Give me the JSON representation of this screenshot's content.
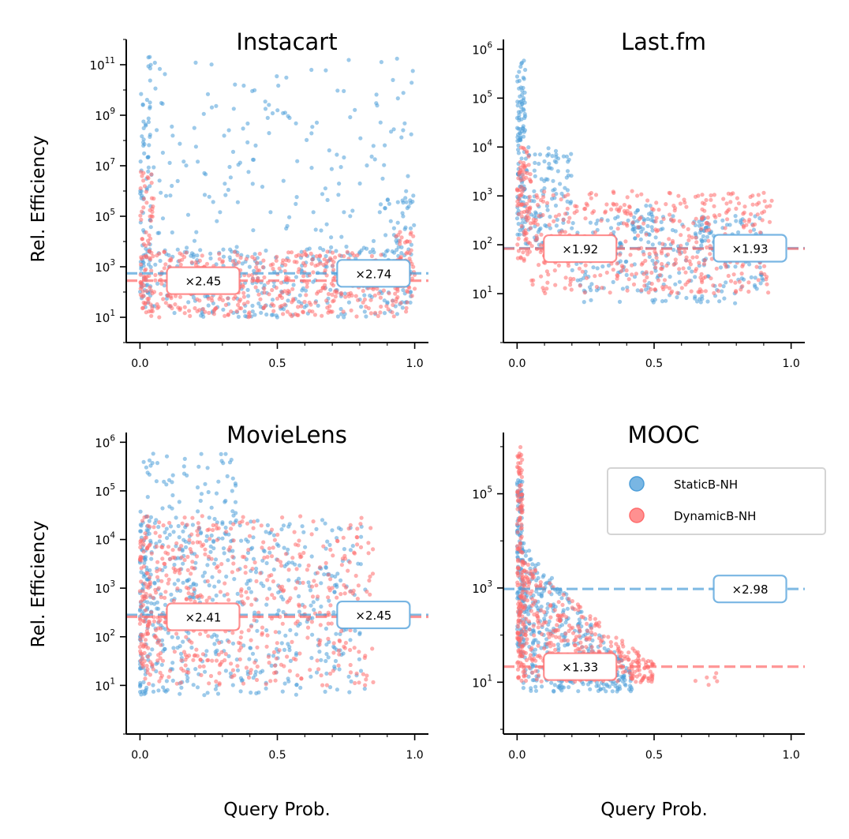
{
  "figure": {
    "xlabel": "Query Prob.",
    "ylabel": "Rel. Efficiency"
  },
  "legend": {
    "placement": "right-of-MOOC-panel",
    "items": [
      {
        "label": "StaticB-NH",
        "color": "#4c9ed9"
      },
      {
        "label": "DynamicB-NH",
        "color": "#ff6b6b"
      }
    ]
  },
  "colors": {
    "static": "#4c9ed9",
    "dynamic": "#ff6b6b"
  },
  "chart_data": [
    {
      "type": "scatter",
      "title": "Instacart",
      "xlim": [
        -0.05,
        1.05
      ],
      "ylim_log10": [
        0,
        12
      ],
      "xticks": [
        "0.0",
        "0.5",
        "1.0"
      ],
      "yticks": [
        {
          "base": "10",
          "exp": "1"
        },
        {
          "base": "10",
          "exp": "3"
        },
        {
          "base": "10",
          "exp": "5"
        },
        {
          "base": "10",
          "exp": "7"
        },
        {
          "base": "10",
          "exp": "9"
        },
        {
          "base": "10",
          "exp": "11"
        }
      ],
      "ytick_values": [
        1,
        3,
        5,
        7,
        9,
        11
      ],
      "baselines": [
        {
          "series": "StaticB-NH",
          "y": 2.74,
          "label": "×2.74",
          "label_x": 0.85
        },
        {
          "series": "DynamicB-NH",
          "y": 2.45,
          "label": "×2.45",
          "label_x": 0.23
        }
      ],
      "series": [
        {
          "name": "StaticB-NH",
          "clouds": [
            {
              "x": [
                0,
                0.04
              ],
              "logy": [
                1.5,
                11.5
              ],
              "n": 70,
              "pow": 1
            },
            {
              "x": [
                0,
                1
              ],
              "logy": [
                4,
                11.3
              ],
              "n": 170,
              "pow": 1
            },
            {
              "x": [
                0,
                1
              ],
              "logy": [
                1,
                3.8
              ],
              "n": 330,
              "pow": 1
            },
            {
              "x": [
                0.9,
                1
              ],
              "logy": [
                3,
                6
              ],
              "n": 35,
              "pow": 1
            }
          ]
        },
        {
          "name": "DynamicB-NH",
          "clouds": [
            {
              "x": [
                0,
                0.05
              ],
              "logy": [
                1.5,
                6.8
              ],
              "n": 60,
              "pow": 1
            },
            {
              "x": [
                0,
                1
              ],
              "logy": [
                1,
                3.6
              ],
              "n": 480,
              "pow": 1
            },
            {
              "x": [
                0.93,
                1
              ],
              "logy": [
                2,
                4.5
              ],
              "n": 40,
              "pow": 1
            }
          ]
        }
      ]
    },
    {
      "type": "scatter",
      "title": "Last.fm",
      "xlim": [
        -0.05,
        1.05
      ],
      "ylim_log10": [
        0,
        6.2
      ],
      "xticks": [
        "0.0",
        "0.5",
        "1.0"
      ],
      "yticks": [
        {
          "base": "10",
          "exp": "1"
        },
        {
          "base": "10",
          "exp": "2"
        },
        {
          "base": "10",
          "exp": "3"
        },
        {
          "base": "10",
          "exp": "4"
        },
        {
          "base": "10",
          "exp": "5"
        },
        {
          "base": "10",
          "exp": "6"
        }
      ],
      "ytick_values": [
        1,
        2,
        3,
        4,
        5,
        6
      ],
      "baselines": [
        {
          "series": "StaticB-NH",
          "y": 1.93,
          "label": "×1.93",
          "label_x": 0.85
        },
        {
          "series": "DynamicB-NH",
          "y": 1.92,
          "label": "×1.92",
          "label_x": 0.23
        }
      ],
      "series": [
        {
          "name": "StaticB-NH",
          "clouds": [
            {
              "x": [
                0,
                0.03
              ],
              "logy": [
                2.2,
                5.8
              ],
              "n": 110,
              "pow": 1
            },
            {
              "x": [
                0.03,
                0.2
              ],
              "logy": [
                2,
                4
              ],
              "n": 110,
              "pow": 1
            },
            {
              "x": [
                0.2,
                0.9
              ],
              "logy": [
                0.8,
                2.6
              ],
              "n": 260,
              "pow": 1
            },
            {
              "x": [
                0.42,
                0.5
              ],
              "logy": [
                2.2,
                2.8
              ],
              "n": 30,
              "pow": 1
            },
            {
              "x": [
                0.65,
                0.72
              ],
              "logy": [
                2,
                2.6
              ],
              "n": 25,
              "pow": 1
            }
          ]
        },
        {
          "name": "DynamicB-NH",
          "clouds": [
            {
              "x": [
                0,
                0.05
              ],
              "logy": [
                1.5,
                4
              ],
              "n": 90,
              "pow": 1
            },
            {
              "x": [
                0.05,
                0.93
              ],
              "logy": [
                1,
                3.1
              ],
              "n": 450,
              "pow": 1
            }
          ]
        }
      ]
    },
    {
      "type": "scatter",
      "title": "MovieLens",
      "xlim": [
        -0.05,
        1.05
      ],
      "ylim_log10": [
        0,
        6.2
      ],
      "xticks": [
        "0.0",
        "0.5",
        "1.0"
      ],
      "yticks": [
        {
          "base": "10",
          "exp": "1"
        },
        {
          "base": "10",
          "exp": "2"
        },
        {
          "base": "10",
          "exp": "3"
        },
        {
          "base": "10",
          "exp": "4"
        },
        {
          "base": "10",
          "exp": "5"
        },
        {
          "base": "10",
          "exp": "6"
        }
      ],
      "ytick_values": [
        1,
        2,
        3,
        4,
        5,
        6
      ],
      "baselines": [
        {
          "series": "StaticB-NH",
          "y": 2.45,
          "label": "×2.45",
          "label_x": 0.85
        },
        {
          "series": "DynamicB-NH",
          "y": 2.41,
          "label": "×2.41",
          "label_x": 0.23
        }
      ],
      "series": [
        {
          "name": "StaticB-NH",
          "clouds": [
            {
              "x": [
                0,
                0.35
              ],
              "logy": [
                3.8,
                5.8
              ],
              "n": 90,
              "pow": 1
            },
            {
              "x": [
                0,
                0.82
              ],
              "logy": [
                0.8,
                4.4
              ],
              "n": 560,
              "pow": 1.6
            }
          ]
        },
        {
          "name": "DynamicB-NH",
          "clouds": [
            {
              "x": [
                0,
                0.85
              ],
              "logy": [
                1,
                4.5
              ],
              "n": 600,
              "pow": 1.6
            }
          ]
        }
      ]
    },
    {
      "type": "scatter",
      "title": "MOOC",
      "xlim": [
        -0.05,
        1.05
      ],
      "ylim_log10": [
        -0.1,
        6.3
      ],
      "xticks": [
        "0.0",
        "0.5",
        "1.0"
      ],
      "yticks": [
        {
          "base": "10",
          "exp": "1"
        },
        {
          "base": "10",
          "exp": "3"
        },
        {
          "base": "10",
          "exp": "5"
        }
      ],
      "ytick_values": [
        1,
        3,
        5
      ],
      "baselines": [
        {
          "series": "StaticB-NH",
          "y": 2.98,
          "label": "×2.98",
          "label_x": 0.85
        },
        {
          "series": "DynamicB-NH",
          "y": 1.33,
          "label": "×1.33",
          "label_x": 0.23
        }
      ],
      "series": [
        {
          "name": "StaticB-NH",
          "clouds": [
            {
              "x": [
                0,
                0.02
              ],
              "logy": [
                1.5,
                5.3
              ],
              "n": 120,
              "pow": 1
            },
            {
              "x": [
                0.02,
                0.42
              ],
              "logy": [
                0.8,
                4
              ],
              "n": 400,
              "decay": true
            }
          ]
        },
        {
          "name": "DynamicB-NH",
          "clouds": [
            {
              "x": [
                0,
                0.02
              ],
              "logy": [
                1,
                6
              ],
              "n": 150,
              "pow": 1
            },
            {
              "x": [
                0.02,
                0.5
              ],
              "logy": [
                1,
                3.6
              ],
              "n": 380,
              "decay": true
            },
            {
              "x": [
                0.65,
                0.78
              ],
              "logy": [
                0.8,
                1.2
              ],
              "n": 6,
              "pow": 1
            }
          ]
        }
      ]
    }
  ]
}
